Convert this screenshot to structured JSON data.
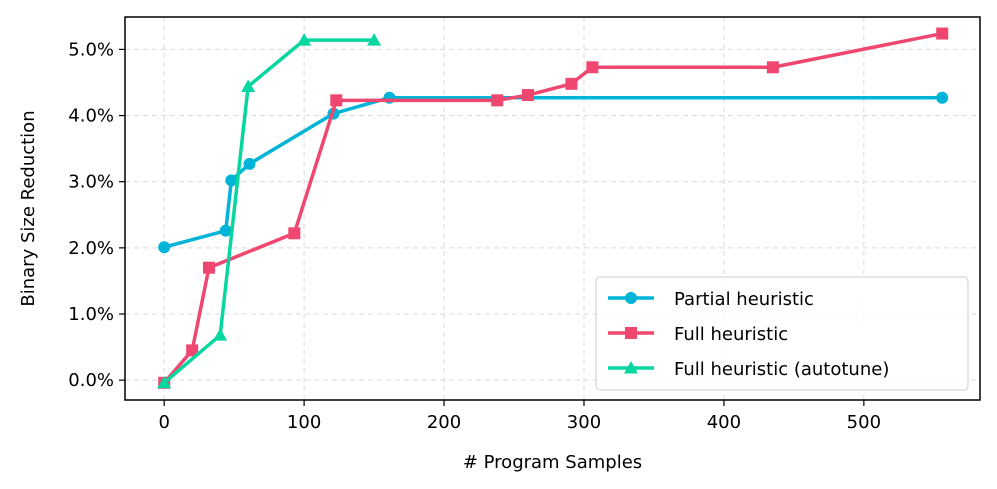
{
  "chart_data": {
    "type": "line",
    "title": "",
    "xlabel": "# Program Samples",
    "ylabel": "Binary Size Reduction",
    "xlim": [
      -28,
      583
    ],
    "ylim": [
      -0.003,
      0.0549
    ],
    "grid": true,
    "legend_position": "lower-right",
    "x_ticks": [
      0,
      100,
      200,
      300,
      400,
      500
    ],
    "x_tick_labels": [
      "0",
      "100",
      "200",
      "300",
      "400",
      "500"
    ],
    "y_ticks": [
      0,
      0.01,
      0.02,
      0.03,
      0.04,
      0.05
    ],
    "y_tick_labels": [
      "0.0%",
      "1.0%",
      "2.0%",
      "3.0%",
      "4.0%",
      "5.0%"
    ],
    "series": [
      {
        "name": "Partial heuristic",
        "color": "#00b4d8",
        "marker": "circle",
        "x": [
          0,
          44,
          48,
          61,
          121,
          161,
          556
        ],
        "y": [
          0.0201,
          0.0226,
          0.0302,
          0.0327,
          0.0403,
          0.0427,
          0.0427
        ]
      },
      {
        "name": "Full heuristic",
        "color": "#ef476f",
        "marker": "square",
        "x": [
          0,
          20,
          32,
          93,
          123,
          238,
          260,
          291,
          306,
          435,
          556
        ],
        "y": [
          -0.0004,
          0.0045,
          0.017,
          0.0222,
          0.0423,
          0.0423,
          0.0431,
          0.0448,
          0.0473,
          0.0473,
          0.0524
        ]
      },
      {
        "name": "Full heuristic (autotune)",
        "color": "#06d6a0",
        "marker": "triangle",
        "x": [
          0,
          40,
          60,
          100,
          150
        ],
        "y": [
          -0.0004,
          0.0068,
          0.0444,
          0.0514,
          0.0514
        ]
      }
    ]
  }
}
